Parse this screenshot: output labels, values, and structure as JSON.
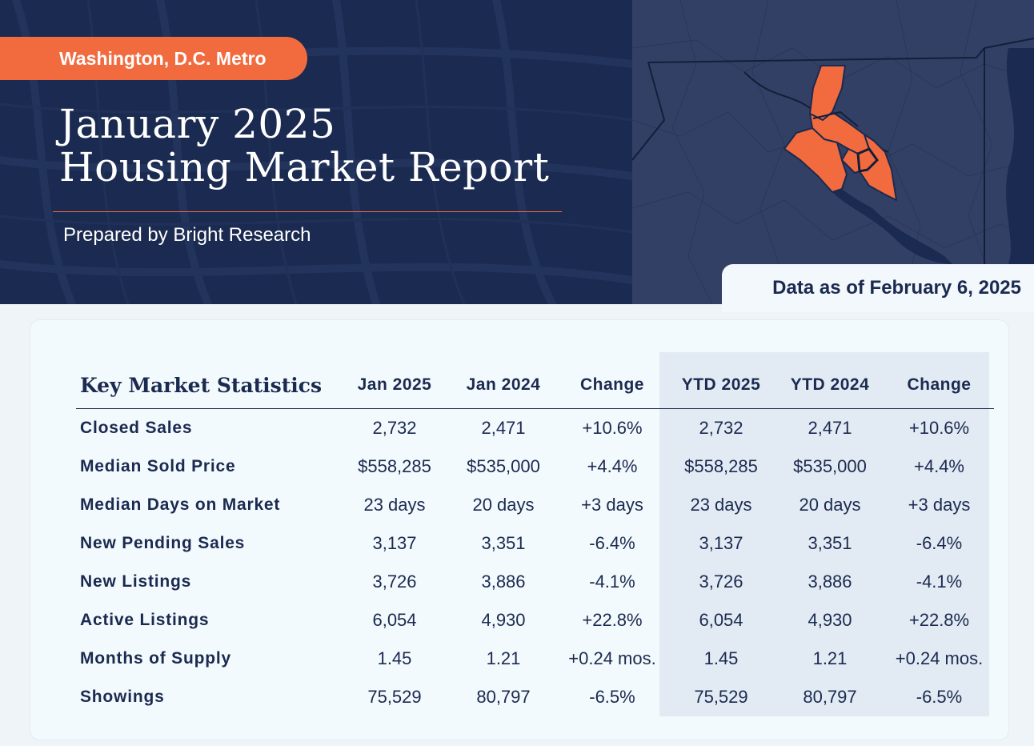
{
  "header": {
    "region": "Washington, D.C. Metro",
    "title_line1": "January 2025",
    "title_line2": "Housing Market Report",
    "prepared_by": "Prepared by Bright Research",
    "as_of": "Data as of February 6, 2025"
  },
  "colors": {
    "navy": "#1b2a50",
    "orange": "#f26b3f",
    "map_fill": "#334066"
  },
  "map": {
    "icon": "region-map-illustration"
  },
  "table": {
    "title": "Key Market Statistics",
    "columns": [
      "Jan 2025",
      "Jan 2024",
      "Change",
      "YTD 2025",
      "YTD 2024",
      "Change"
    ],
    "rows": [
      {
        "metric": "Closed Sales",
        "values": [
          "2,732",
          "2,471",
          "+10.6%",
          "2,732",
          "2,471",
          "+10.6%"
        ]
      },
      {
        "metric": "Median Sold Price",
        "values": [
          "$558,285",
          "$535,000",
          "+4.4%",
          "$558,285",
          "$535,000",
          "+4.4%"
        ]
      },
      {
        "metric": "Median Days on Market",
        "values": [
          "23 days",
          "20 days",
          "+3 days",
          "23 days",
          "20 days",
          "+3 days"
        ]
      },
      {
        "metric": "New Pending Sales",
        "values": [
          "3,137",
          "3,351",
          "-6.4%",
          "3,137",
          "3,351",
          "-6.4%"
        ]
      },
      {
        "metric": "New Listings",
        "values": [
          "3,726",
          "3,886",
          "-4.1%",
          "3,726",
          "3,886",
          "-4.1%"
        ]
      },
      {
        "metric": "Active Listings",
        "values": [
          "6,054",
          "4,930",
          "+22.8%",
          "6,054",
          "4,930",
          "+22.8%"
        ]
      },
      {
        "metric": "Months of Supply",
        "values": [
          "1.45",
          "1.21",
          "+0.24 mos.",
          "1.45",
          "1.21",
          "+0.24 mos."
        ]
      },
      {
        "metric": "Showings",
        "values": [
          "75,529",
          "80,797",
          "-6.5%",
          "75,529",
          "80,797",
          "-6.5%"
        ]
      }
    ]
  }
}
